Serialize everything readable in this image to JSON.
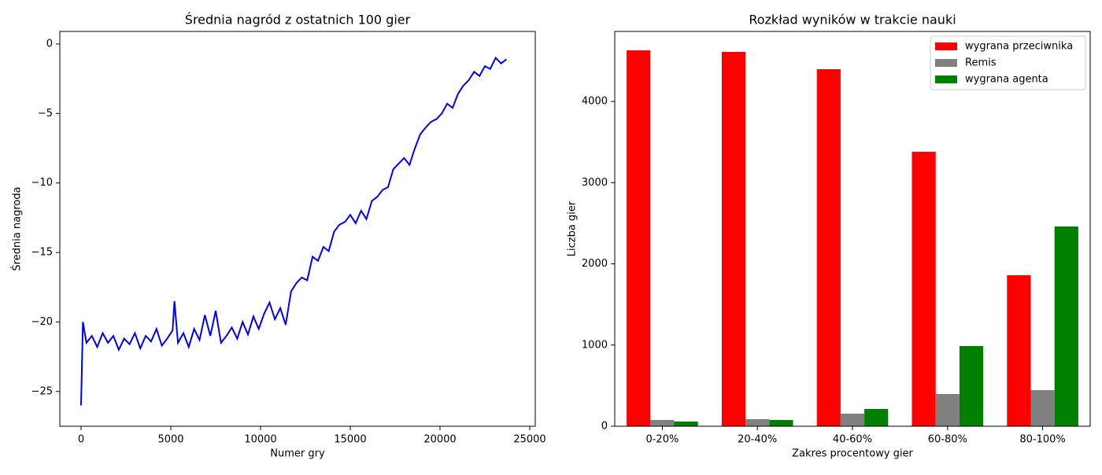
{
  "chart_data": [
    {
      "type": "line",
      "title": "Średnia nagród z ostatnich 100 gier",
      "x_label": "Numer gry",
      "y_label": "Średnia nagroda",
      "series": [
        {
          "name": "Średnia nagroda",
          "color": "#0000ff",
          "x": [
            0,
            100,
            300,
            600,
            900,
            1200,
            1500,
            1800,
            2100,
            2400,
            2700,
            3000,
            3300,
            3600,
            3900,
            4200,
            4500,
            4800,
            5100,
            5200,
            5400,
            5700,
            6000,
            6300,
            6600,
            6900,
            7200,
            7500,
            7800,
            8100,
            8400,
            8700,
            9000,
            9300,
            9600,
            9900,
            10200,
            10500,
            10800,
            11100,
            11400,
            11700,
            12000,
            12300,
            12600,
            12900,
            13200,
            13500,
            13800,
            14100,
            14400,
            14700,
            15000,
            15300,
            15600,
            15900,
            16200,
            16500,
            16800,
            17100,
            17400,
            17700,
            18000,
            18300,
            18600,
            18900,
            19200,
            19500,
            19800,
            20100,
            20400,
            20700,
            21000,
            21300,
            21600,
            21900,
            22200,
            22500,
            22800,
            23100,
            23400,
            23700
          ],
          "values": [
            -26.0,
            -20.0,
            -21.5,
            -21.0,
            -21.8,
            -20.8,
            -21.5,
            -21.0,
            -22.0,
            -21.2,
            -21.6,
            -20.8,
            -21.9,
            -21.0,
            -21.4,
            -20.5,
            -21.7,
            -21.2,
            -20.6,
            -18.5,
            -21.5,
            -20.8,
            -21.8,
            -20.5,
            -21.3,
            -19.5,
            -21.0,
            -19.2,
            -21.5,
            -21.0,
            -20.4,
            -21.2,
            -20.0,
            -20.9,
            -19.6,
            -20.5,
            -19.4,
            -18.6,
            -19.8,
            -19.0,
            -20.2,
            -17.8,
            -17.2,
            -16.8,
            -17.0,
            -15.3,
            -15.6,
            -14.6,
            -14.9,
            -13.5,
            -13.0,
            -12.8,
            -12.3,
            -12.9,
            -12.0,
            -12.6,
            -11.3,
            -11.0,
            -10.5,
            -10.3,
            -9.0,
            -8.6,
            -8.2,
            -8.7,
            -7.5,
            -6.5,
            -6.0,
            -5.6,
            -5.4,
            -5.0,
            -4.3,
            -4.6,
            -3.6,
            -3.0,
            -2.6,
            -2.0,
            -2.3,
            -1.6,
            -1.8,
            -1.0,
            -1.4,
            -1.1
          ]
        }
      ],
      "xlim": [
        -1184,
        25307
      ],
      "xticks": [
        0,
        5000,
        10000,
        15000,
        20000,
        25000
      ],
      "ylim": [
        -27.5,
        0.9
      ],
      "yticks": [
        0,
        {
          "value": -5,
          "label": "−5"
        },
        {
          "value": -10,
          "label": "−10"
        },
        {
          "value": -15,
          "label": "−15"
        },
        {
          "value": -20,
          "label": "−20"
        },
        {
          "value": -25,
          "label": "−25"
        }
      ]
    },
    {
      "type": "bar",
      "title": "Rozkład wyników w trakcie nauki",
      "x_label": "Zakres procentowy gier",
      "y_label": "Liczba gier",
      "categories": [
        "0-20%",
        "20-40%",
        "40-60%",
        "60-80%",
        "80-100%"
      ],
      "series": [
        {
          "name": "wygrana przeciwnika",
          "color": "#ff0000",
          "values": [
            4630,
            4610,
            4397,
            3380,
            1860
          ]
        },
        {
          "name": "Remis",
          "color": "#808080",
          "values": [
            77,
            87,
            155,
            397,
            445
          ]
        },
        {
          "name": "wygrana agenta",
          "color": "#008000",
          "values": [
            58,
            77,
            213,
            988,
            2460
          ]
        }
      ],
      "ylim": [
        0,
        4862
      ],
      "yticks": [
        0,
        1000,
        2000,
        3000,
        4000
      ],
      "legend": "upper right"
    }
  ]
}
